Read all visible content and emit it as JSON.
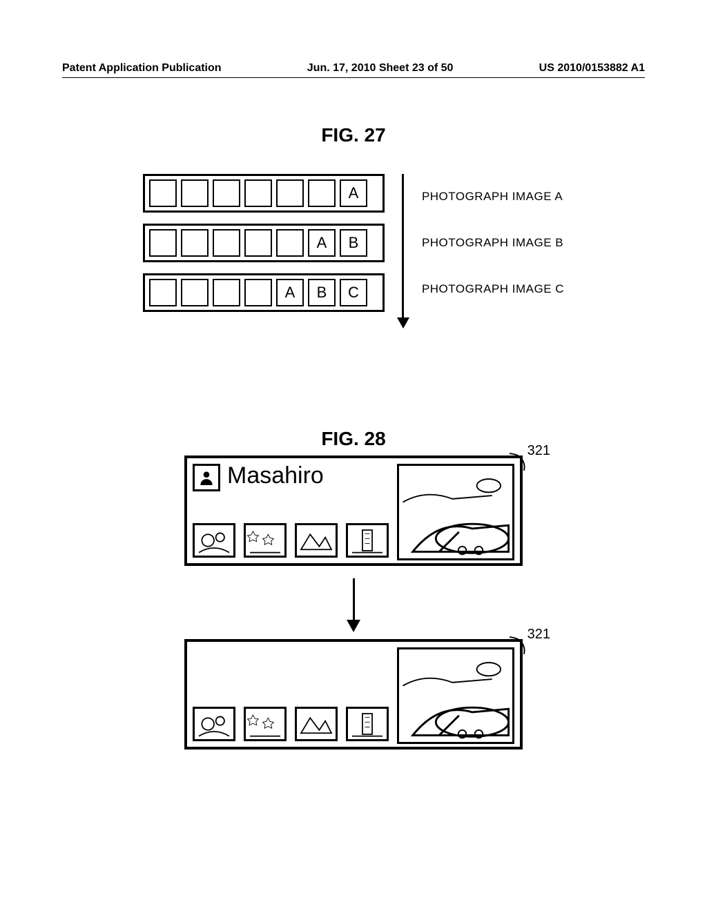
{
  "header": {
    "left": "Patent Application Publication",
    "center": "Jun. 17, 2010  Sheet 23 of 50",
    "right": "US 2010/0153882 A1"
  },
  "fig27": {
    "label": "FIG. 27",
    "rows": [
      {
        "filled": [
          "A"
        ],
        "caption": "PHOTOGRAPH IMAGE A"
      },
      {
        "filled": [
          "A",
          "B"
        ],
        "caption": "PHOTOGRAPH IMAGE B"
      },
      {
        "filled": [
          "A",
          "B",
          "C"
        ],
        "caption": "PHOTOGRAPH IMAGE C"
      }
    ],
    "cells_per_row": 7
  },
  "fig28": {
    "label": "FIG. 28",
    "callout": "321",
    "name": "Masahiro",
    "thumbs": [
      "flowers",
      "stars",
      "mountain",
      "tower"
    ],
    "feature": "airplane"
  }
}
